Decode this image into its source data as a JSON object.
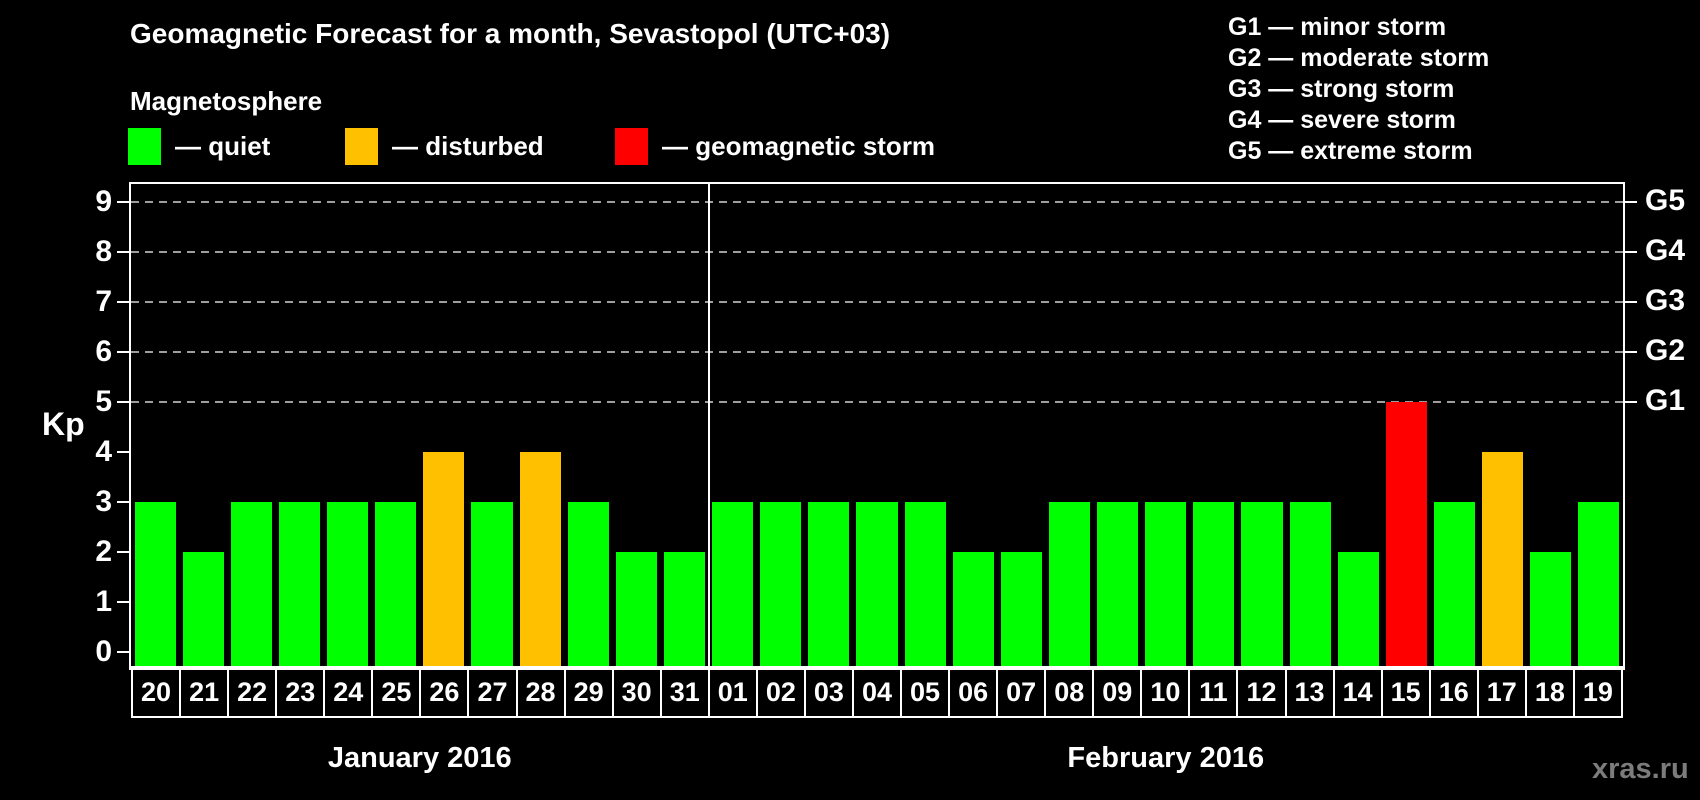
{
  "title": "Geomagnetic Forecast for a month, Sevastopol (UTC+03)",
  "subtitle": "Magnetosphere",
  "legend": {
    "items": [
      {
        "key": "quiet",
        "label": "— quiet",
        "color": "#00ff00"
      },
      {
        "key": "disturbed",
        "label": "— disturbed",
        "color": "#ffc000"
      },
      {
        "key": "storm",
        "label": "— geomagnetic storm",
        "color": "#ff0000"
      }
    ]
  },
  "storm_scale": [
    "G1 — minor storm",
    "G2 — moderate storm",
    "G3 — strong storm",
    "G4 — severe storm",
    "G5 — extreme storm"
  ],
  "watermark": "xras.ru",
  "chart_data": {
    "type": "bar",
    "ylabel": "Kp",
    "ylim": [
      0,
      9
    ],
    "yticks": [
      0,
      1,
      2,
      3,
      4,
      5,
      6,
      7,
      8,
      9
    ],
    "gridlines_at": [
      5,
      6,
      7,
      8,
      9
    ],
    "grid": "dashed horizontal lines at storm levels Kp 5-9",
    "legend_position": "top-left",
    "right_axis": [
      {
        "kp": 5,
        "label": "G1"
      },
      {
        "kp": 6,
        "label": "G2"
      },
      {
        "kp": 7,
        "label": "G3"
      },
      {
        "kp": 8,
        "label": "G4"
      },
      {
        "kp": 9,
        "label": "G5"
      }
    ],
    "colors": {
      "quiet": "#00ff00",
      "disturbed": "#ffc000",
      "storm": "#ff0000"
    },
    "months": [
      {
        "label": "January 2016",
        "days": [
          {
            "day": "20",
            "kp": 3,
            "status": "quiet"
          },
          {
            "day": "21",
            "kp": 2,
            "status": "quiet"
          },
          {
            "day": "22",
            "kp": 3,
            "status": "quiet"
          },
          {
            "day": "23",
            "kp": 3,
            "status": "quiet"
          },
          {
            "day": "24",
            "kp": 3,
            "status": "quiet"
          },
          {
            "day": "25",
            "kp": 3,
            "status": "quiet"
          },
          {
            "day": "26",
            "kp": 4,
            "status": "disturbed"
          },
          {
            "day": "27",
            "kp": 3,
            "status": "quiet"
          },
          {
            "day": "28",
            "kp": 4,
            "status": "disturbed"
          },
          {
            "day": "29",
            "kp": 3,
            "status": "quiet"
          },
          {
            "day": "30",
            "kp": 2,
            "status": "quiet"
          },
          {
            "day": "31",
            "kp": 2,
            "status": "quiet"
          }
        ]
      },
      {
        "label": "February 2016",
        "days": [
          {
            "day": "01",
            "kp": 3,
            "status": "quiet"
          },
          {
            "day": "02",
            "kp": 3,
            "status": "quiet"
          },
          {
            "day": "03",
            "kp": 3,
            "status": "quiet"
          },
          {
            "day": "04",
            "kp": 3,
            "status": "quiet"
          },
          {
            "day": "05",
            "kp": 3,
            "status": "quiet"
          },
          {
            "day": "06",
            "kp": 2,
            "status": "quiet"
          },
          {
            "day": "07",
            "kp": 2,
            "status": "quiet"
          },
          {
            "day": "08",
            "kp": 3,
            "status": "quiet"
          },
          {
            "day": "09",
            "kp": 3,
            "status": "quiet"
          },
          {
            "day": "10",
            "kp": 3,
            "status": "quiet"
          },
          {
            "day": "11",
            "kp": 3,
            "status": "quiet"
          },
          {
            "day": "12",
            "kp": 3,
            "status": "quiet"
          },
          {
            "day": "13",
            "kp": 3,
            "status": "quiet"
          },
          {
            "day": "14",
            "kp": 2,
            "status": "quiet"
          },
          {
            "day": "15",
            "kp": 5,
            "status": "storm"
          },
          {
            "day": "16",
            "kp": 3,
            "status": "quiet"
          },
          {
            "day": "17",
            "kp": 4,
            "status": "disturbed"
          },
          {
            "day": "18",
            "kp": 2,
            "status": "quiet"
          },
          {
            "day": "19",
            "kp": 3,
            "status": "quiet"
          }
        ]
      }
    ]
  }
}
